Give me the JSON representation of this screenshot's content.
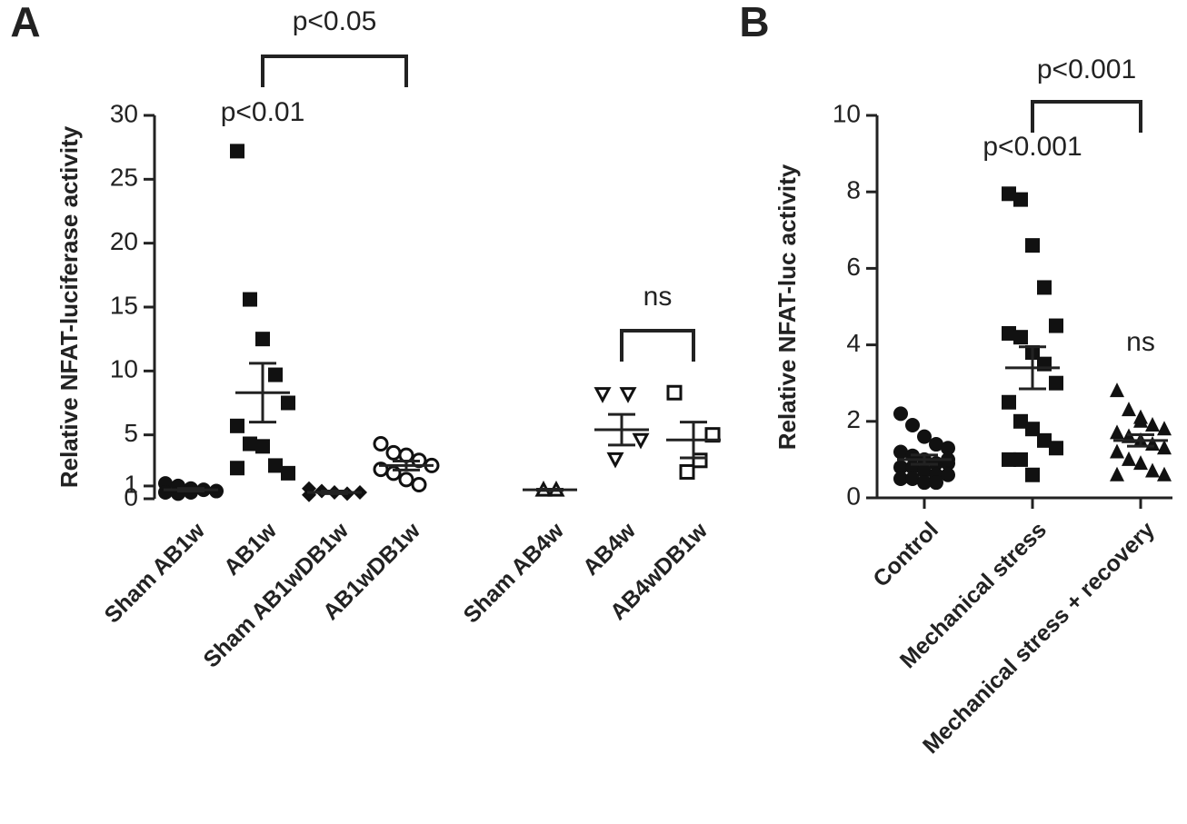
{
  "chart_data": [
    {
      "type": "dot",
      "panel": "A",
      "y_label": "Relative NFAT-luciferase activity",
      "categories": [
        "Sham AB1w",
        "AB1w",
        "Sham AB1wDB1w",
        "AB1wDB1w",
        null,
        "Sham AB4w",
        "AB4w",
        "AB4wDB1w"
      ],
      "markers": [
        "circle",
        "square",
        "diamond",
        "circle-open",
        null,
        "triangle-open",
        "triangle-down-open",
        "square-open"
      ],
      "points": [
        [
          1.2,
          1.0,
          0.8,
          0.7,
          0.6,
          0.5,
          0.4,
          0.5
        ],
        [
          27.2,
          15.6,
          12.5,
          9.7,
          7.5,
          5.7,
          4.3,
          4.1,
          2.6,
          2.0,
          2.4
        ],
        [
          0.8,
          0.6,
          0.5,
          0.4,
          0.5,
          0.3
        ],
        [
          4.3,
          3.6,
          3.4,
          3.0,
          2.6,
          2.3,
          2.0,
          1.5,
          1.1
        ],
        null,
        [
          0.7,
          0.7
        ],
        [
          8.2,
          3.1,
          8.2,
          4.6
        ],
        [
          8.3,
          2.1,
          3.0,
          5.0
        ]
      ],
      "means": [
        0.7,
        8.3,
        0.5,
        2.6,
        null,
        0.7,
        5.4,
        4.6
      ],
      "sems": [
        0.1,
        2.3,
        0.1,
        0.35,
        null,
        0.05,
        1.2,
        1.4
      ],
      "ylim": [
        0,
        30
      ],
      "yticks": [
        0,
        1,
        5,
        10,
        15,
        20,
        25,
        30
      ],
      "x_axis_line": false,
      "annotations": [
        {
          "text": "p<0.01",
          "groups": [
            1
          ]
        },
        {
          "text": "p<0.05",
          "groups": [
            1,
            3
          ]
        },
        {
          "text": "ns",
          "groups": [
            6,
            7
          ]
        }
      ]
    },
    {
      "type": "dot",
      "panel": "B",
      "y_label": "Relative NFAT-luc activity",
      "categories": [
        "Control",
        "Mechanical stress",
        "Mechanical stress + recovery"
      ],
      "markers": [
        "circle",
        "square",
        "triangle"
      ],
      "points": [
        [
          2.2,
          1.9,
          1.6,
          1.4,
          1.3,
          1.2,
          1.1,
          1.0,
          0.9,
          0.9,
          0.8,
          0.8,
          0.7,
          0.6,
          0.6,
          0.5,
          0.5,
          0.4,
          0.4,
          1.0
        ],
        [
          7.95,
          7.8,
          6.6,
          5.5,
          4.5,
          4.3,
          4.2,
          3.8,
          3.5,
          3.0,
          2.5,
          2.0,
          1.8,
          1.5,
          1.3,
          1.0,
          1.0,
          0.6
        ],
        [
          2.8,
          2.3,
          2.0,
          1.9,
          1.8,
          1.7,
          1.6,
          1.5,
          1.4,
          1.3,
          1.2,
          1.0,
          0.9,
          0.7,
          0.6,
          0.6,
          1.6,
          2.1
        ]
      ],
      "means": [
        1.0,
        3.4,
        1.5
      ],
      "sems": [
        0.12,
        0.55,
        0.15
      ],
      "ylim": [
        0,
        10
      ],
      "yticks": [
        0,
        2,
        4,
        6,
        8,
        10
      ],
      "x_axis_line": true,
      "annotations": [
        {
          "text": "p<0.001",
          "groups": [
            1
          ]
        },
        {
          "text": "p<0.001",
          "groups": [
            1,
            2
          ]
        },
        {
          "text": "ns",
          "groups": [
            2
          ]
        }
      ]
    }
  ]
}
